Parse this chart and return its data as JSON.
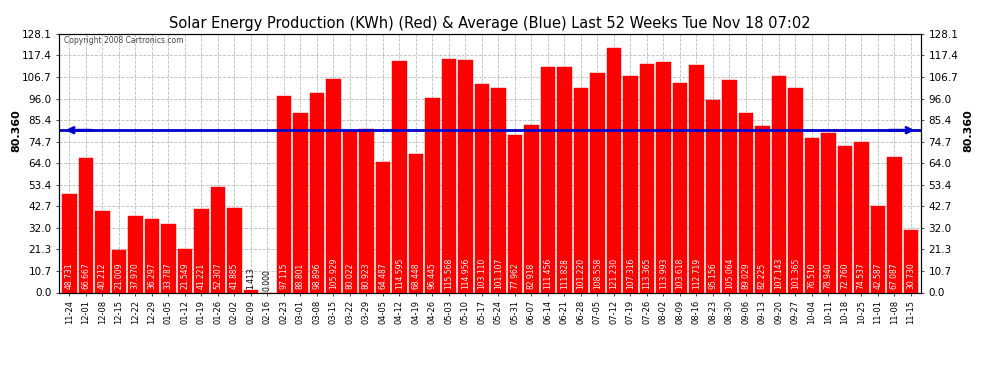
{
  "title": "Solar Energy Production (KWh) (Red) & Average (Blue) Last 52 Weeks Tue Nov 18 07:02",
  "copyright": "Copyright 2008 Cartronics.com",
  "average": 80.36,
  "avg_label": "80.360",
  "ylim": [
    0.0,
    128.1
  ],
  "ytick_values": [
    0.0,
    10.7,
    21.3,
    32.0,
    42.7,
    53.4,
    64.0,
    74.7,
    85.4,
    96.0,
    106.7,
    117.4,
    128.1
  ],
  "ytick_labels": [
    "0.0",
    "10.7",
    "21.3",
    "32.0",
    "42.7",
    "53.4",
    "64.0",
    "74.7",
    "85.4",
    "96.0",
    "106.7",
    "117.4",
    "128.1"
  ],
  "labels": [
    "11-24",
    "12-01",
    "12-08",
    "12-15",
    "12-22",
    "12-29",
    "01-05",
    "01-12",
    "01-19",
    "01-26",
    "02-02",
    "02-09",
    "02-16",
    "02-23",
    "03-01",
    "03-08",
    "03-15",
    "03-22",
    "03-29",
    "04-05",
    "04-12",
    "04-19",
    "04-26",
    "05-03",
    "05-10",
    "05-17",
    "05-24",
    "05-31",
    "06-07",
    "06-14",
    "06-21",
    "06-28",
    "07-05",
    "07-12",
    "07-19",
    "07-26",
    "08-02",
    "08-09",
    "08-16",
    "08-23",
    "08-30",
    "09-06",
    "09-13",
    "09-20",
    "09-27",
    "10-04",
    "10-11",
    "10-18",
    "10-25",
    "11-01",
    "11-08",
    "11-15"
  ],
  "values": [
    48.731,
    66.667,
    40.212,
    21.009,
    37.97,
    36.297,
    33.787,
    21.549,
    41.221,
    52.307,
    41.885,
    1.413,
    0.0,
    97.115,
    88.801,
    98.896,
    105.929,
    80.022,
    80.923,
    64.487,
    114.595,
    68.448,
    96.445,
    115.568,
    114.956,
    103.11,
    101.107,
    77.962,
    82.918,
    111.456,
    111.828,
    101.22,
    108.558,
    121.23,
    107.316,
    113.365,
    113.993,
    103.618,
    112.719,
    95.156,
    105.064,
    89.029,
    82.225,
    107.143,
    101.365,
    76.51,
    78.94,
    72.76,
    74.537,
    42.587,
    67.087,
    30.73
  ],
  "bar_color": "#ff0000",
  "avg_line_color": "#0000cc",
  "bg_color": "#ffffff",
  "grid_color": "#aaaaaa",
  "text_color": "#000000",
  "val_label_color": "#ffffff",
  "val_label_fontsize": 5.5,
  "xlabel_fontsize": 6.0,
  "ylabel_fontsize": 7.5,
  "title_fontsize": 10.5
}
